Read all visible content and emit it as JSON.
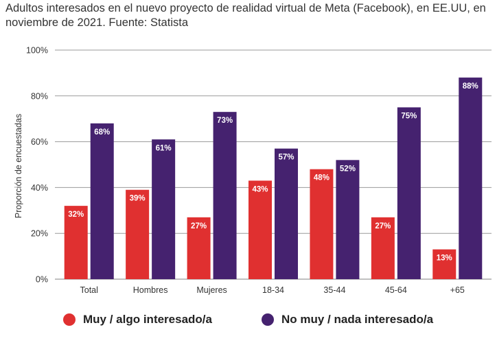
{
  "title": "Adultos interesados en el nuevo proyecto de realidad virtual de Meta (Facebook), en EE.UU, en noviembre de 2021. Fuente: Statista",
  "colors": {
    "interested": "#e03030",
    "not_interested": "#45226f",
    "grid": "#9a9a9a"
  },
  "chart_data": {
    "type": "bar",
    "title": "Adultos interesados en el nuevo proyecto de realidad virtual de Meta (Facebook), en EE.UU, en noviembre de 2021. Fuente: Statista",
    "xlabel": "",
    "ylabel": "Proporción de encuestadas",
    "ylim": [
      0,
      100
    ],
    "yticks": [
      "0%",
      "20%",
      "40%",
      "60%",
      "80%",
      "100%"
    ],
    "categories": [
      "Total",
      "Hombres",
      "Mujeres",
      "18-34",
      "35-44",
      "45-64",
      "+65"
    ],
    "series": [
      {
        "name": "Muy / algo interesado/a",
        "values": [
          32,
          39,
          27,
          43,
          48,
          27,
          13
        ],
        "labels": [
          "32%",
          "39%",
          "27%",
          "43%",
          "48%",
          "27%",
          "13%"
        ]
      },
      {
        "name": "No muy / nada interesado/a",
        "values": [
          68,
          61,
          73,
          57,
          52,
          75,
          88
        ],
        "labels": [
          "68%",
          "61%",
          "73%",
          "57%",
          "52%",
          "75%",
          "88%"
        ]
      }
    ],
    "grid": true,
    "legend": "bottom"
  }
}
